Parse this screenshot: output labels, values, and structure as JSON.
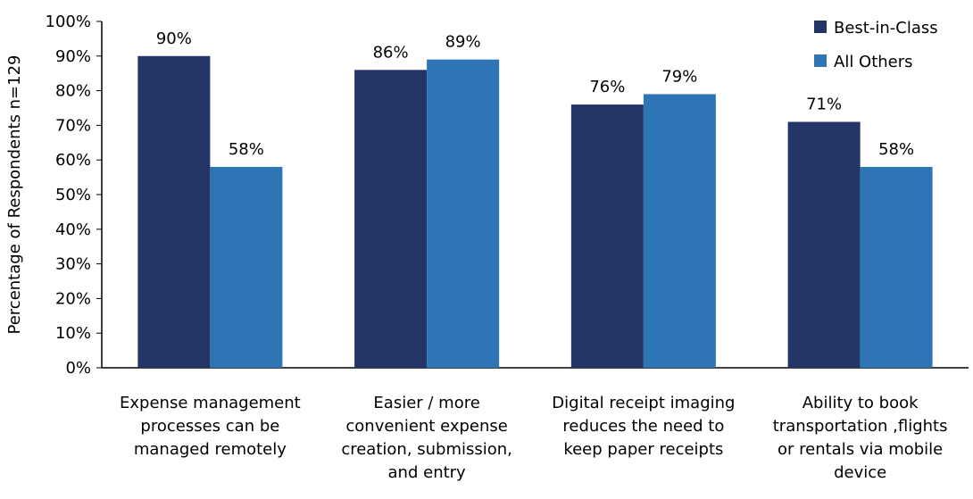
{
  "chart_data": {
    "type": "bar",
    "ylabel": "Percentage of Respondents  n=129",
    "ylim": [
      0,
      100
    ],
    "yticks": [
      "0%",
      "10%",
      "20%",
      "30%",
      "40%",
      "50%",
      "60%",
      "70%",
      "80%",
      "90%",
      "100%"
    ],
    "grid": false,
    "legend_position": "top-right",
    "categories": [
      [
        "Expense management",
        "processes can be",
        "managed remotely"
      ],
      [
        "Easier / more",
        "convenient expense",
        "creation, submission,",
        "and entry"
      ],
      [
        "Digital receipt imaging",
        "reduces the need to",
        "keep paper receipts"
      ],
      [
        "Ability to book",
        "transportation ,flights",
        "or rentals via mobile",
        "device"
      ]
    ],
    "series": [
      {
        "name": "Best-in-Class",
        "color": "#233466",
        "values": [
          90,
          86,
          76,
          71
        ],
        "labels": [
          "90%",
          "86%",
          "76%",
          "71%"
        ]
      },
      {
        "name": "All Others",
        "color": "#2E75B6",
        "values": [
          58,
          89,
          79,
          58
        ],
        "labels": [
          "58%",
          "89%",
          "79%",
          "58%"
        ]
      }
    ]
  }
}
